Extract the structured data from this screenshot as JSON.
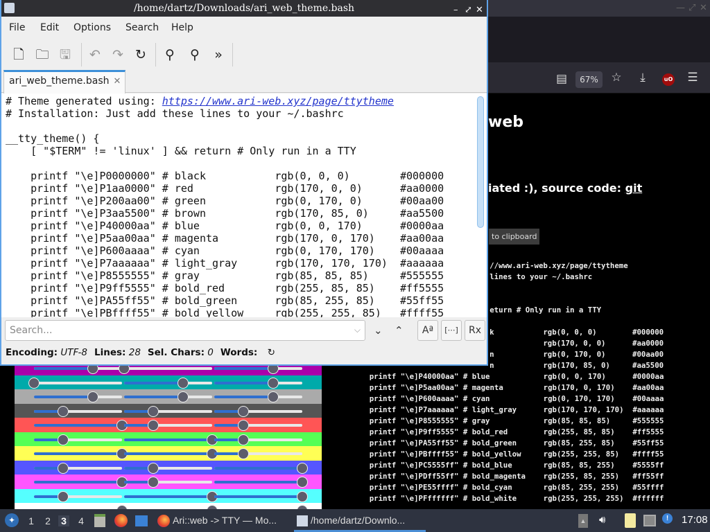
{
  "browser": {
    "zoom": "67%",
    "heading_fragment": "web",
    "subheading_fragment": "iated :), source code: ",
    "subheading_link": "git",
    "copy_button_fragment": "to clipboard",
    "code_header": [
      "# Theme generated using: https://www.ari-web.xyz/page/ttytheme",
      "# Installation: Just add these lines to your ~/.bashrc",
      "",
      "__tty_theme() {",
      "    [ \"$TERM\" != 'linux' ] && return # Only run in a TTY",
      ""
    ]
  },
  "editor": {
    "title": "/home/dartz/Downloads/ari_web_theme.bash",
    "menu": [
      "File",
      "Edit",
      "Options",
      "Search",
      "Help"
    ],
    "tab": "ari_web_theme.bash",
    "comment_prefix": "# Theme generated using: ",
    "link": "https://www.ari-web.xyz/page/ttytheme",
    "header_lines": [
      "# Installation: Just add these lines to your ~/.bashrc",
      "",
      "__tty_theme() {",
      "    [ \"$TERM\" != 'linux' ] && return # Only run in a TTY",
      ""
    ],
    "visible_palette_rows": 12,
    "search_placeholder": "Search...",
    "status": {
      "encoding_label": "Encoding:",
      "encoding": "UTF-8",
      "lines_label": "Lines:",
      "lines": "28",
      "sel_label": "Sel. Chars:",
      "sel": "0",
      "words_label": "Words:"
    }
  },
  "palette": [
    {
      "code": "P0000000",
      "name": "black",
      "rgb": "rgb(0, 0, 0)",
      "hex": "#000000",
      "v": [
        0,
        0,
        0
      ]
    },
    {
      "code": "P1aa0000",
      "name": "red",
      "rgb": "rgb(170, 0, 0)",
      "hex": "#aa0000",
      "v": [
        170,
        0,
        0
      ]
    },
    {
      "code": "P200aa00",
      "name": "green",
      "rgb": "rgb(0, 170, 0)",
      "hex": "#00aa00",
      "v": [
        0,
        170,
        0
      ]
    },
    {
      "code": "P3aa5500",
      "name": "brown",
      "rgb": "rgb(170, 85, 0)",
      "hex": "#aa5500",
      "v": [
        170,
        85,
        0
      ]
    },
    {
      "code": "P40000aa",
      "name": "blue",
      "rgb": "rgb(0, 0, 170)",
      "hex": "#0000aa",
      "v": [
        0,
        0,
        170
      ]
    },
    {
      "code": "P5aa00aa",
      "name": "magenta",
      "rgb": "rgb(170, 0, 170)",
      "hex": "#aa00aa",
      "v": [
        170,
        0,
        170
      ]
    },
    {
      "code": "P600aaaa",
      "name": "cyan",
      "rgb": "rgb(0, 170, 170)",
      "hex": "#00aaaa",
      "v": [
        0,
        170,
        170
      ]
    },
    {
      "code": "P7aaaaaa",
      "name": "light_gray",
      "rgb": "rgb(170, 170, 170)",
      "hex": "#aaaaaa",
      "v": [
        170,
        170,
        170
      ]
    },
    {
      "code": "P8555555",
      "name": "gray",
      "rgb": "rgb(85, 85, 85)",
      "hex": "#555555",
      "v": [
        85,
        85,
        85
      ]
    },
    {
      "code": "P9ff5555",
      "name": "bold_red",
      "rgb": "rgb(255, 85, 85)",
      "hex": "#ff5555",
      "v": [
        255,
        85,
        85
      ]
    },
    {
      "code": "PA55ff55",
      "name": "bold_green",
      "rgb": "rgb(85, 255, 85)",
      "hex": "#55ff55",
      "v": [
        85,
        255,
        85
      ]
    },
    {
      "code": "PBffff55",
      "name": "bold_yellow",
      "rgb": "rgb(255, 255, 85)",
      "hex": "#ffff55",
      "v": [
        255,
        255,
        85
      ]
    },
    {
      "code": "PC5555ff",
      "name": "bold_blue",
      "rgb": "rgb(85, 85, 255)",
      "hex": "#5555ff",
      "v": [
        85,
        85,
        255
      ]
    },
    {
      "code": "PDff55ff",
      "name": "bold_magenta",
      "rgb": "rgb(255, 85, 255)",
      "hex": "#ff55ff",
      "v": [
        255,
        85,
        255
      ]
    },
    {
      "code": "PE55ffff",
      "name": "bold_cyan",
      "rgb": "rgb(85, 255, 255)",
      "hex": "#55ffff",
      "v": [
        85,
        255,
        255
      ]
    },
    {
      "code": "PFffffff",
      "name": "bold_white",
      "rgb": "rgb(255, 255, 255)",
      "hex": "#ffffff",
      "v": [
        255,
        255,
        255
      ]
    }
  ],
  "taskbar": {
    "workspaces": [
      "1",
      "2",
      "3",
      "4"
    ],
    "active_workspace": "3",
    "tasks": [
      "Ari::web -> TTY — Mo...",
      "/home/dartz/Downlo..."
    ],
    "clock": "17:08"
  }
}
